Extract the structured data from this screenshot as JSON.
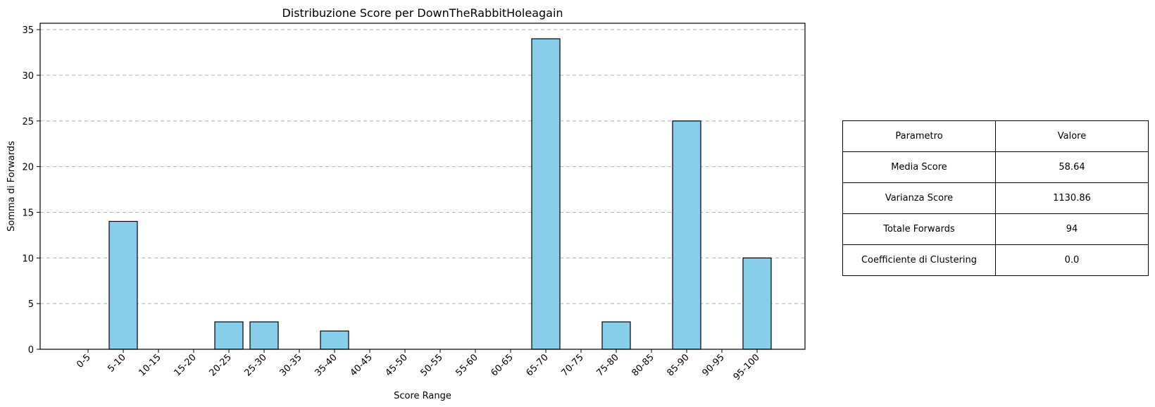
{
  "chart_data": {
    "type": "bar",
    "title": "Distribuzione Score per DownTheRabbitHoleagain",
    "xlabel": "Score Range",
    "ylabel": "Somma di Forwards",
    "categories": [
      "0-5",
      "5-10",
      "10-15",
      "15-20",
      "20-25",
      "25-30",
      "30-35",
      "35-40",
      "40-45",
      "45-50",
      "50-55",
      "55-60",
      "60-65",
      "65-70",
      "70-75",
      "75-80",
      "80-85",
      "85-90",
      "90-95",
      "95-100"
    ],
    "values": [
      0,
      14,
      0,
      0,
      3,
      3,
      0,
      2,
      0,
      0,
      0,
      0,
      0,
      34,
      0,
      3,
      0,
      25,
      0,
      10
    ],
    "ylim": [
      0,
      35.7
    ],
    "yticks": [
      0,
      5,
      10,
      15,
      20,
      25,
      30,
      35
    ],
    "grid": "y",
    "bar_color": "#87ceeb",
    "edge_color": "#000000"
  },
  "table": {
    "header": {
      "param": "Parametro",
      "value": "Valore"
    },
    "rows": [
      {
        "param": "Media Score",
        "value": "58.64"
      },
      {
        "param": "Varianza Score",
        "value": "1130.86"
      },
      {
        "param": "Totale Forwards",
        "value": "94"
      },
      {
        "param": "Coefficiente di Clustering",
        "value": "0.0"
      }
    ]
  }
}
